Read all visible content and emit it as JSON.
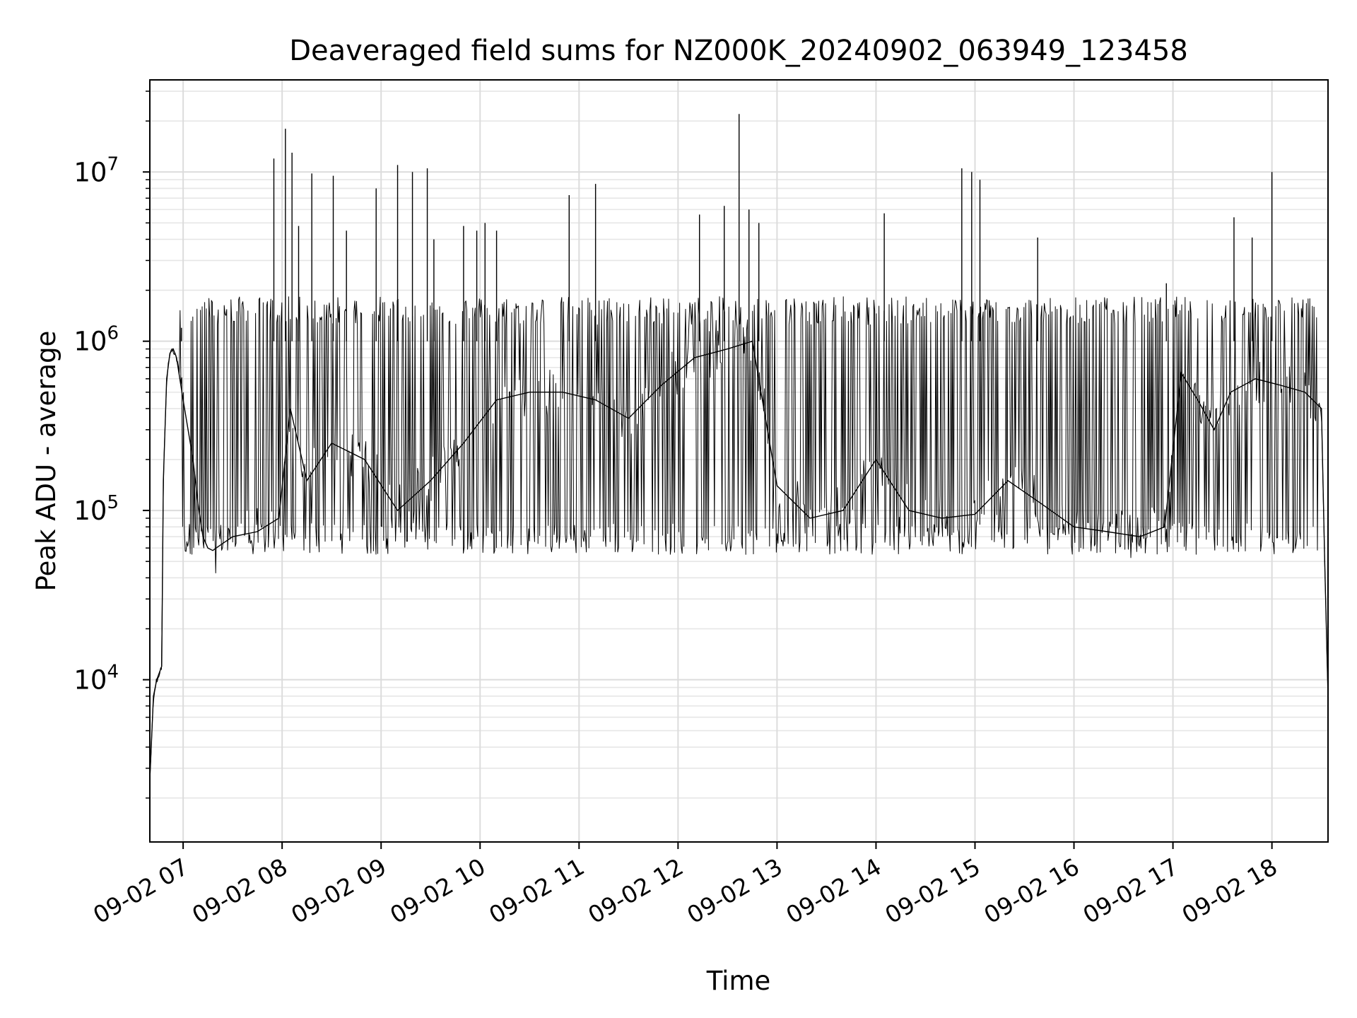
{
  "chart_data": {
    "type": "line",
    "title": "Deaveraged field sums for NZ000K_20240902_063949_123458",
    "xlabel": "Time",
    "ylabel": "Peak ADU - average",
    "yscale": "log",
    "ylim": [
      1100,
      35000000
    ],
    "xlim": [
      "2024-09-02T06:39:49",
      "2024-09-02T18:34:00"
    ],
    "grid": true,
    "legend": "none",
    "line_color": "#000000",
    "x_ticks": [
      {
        "t": "2024-09-02T07:00:00",
        "label": "09-02 07"
      },
      {
        "t": "2024-09-02T08:00:00",
        "label": "09-02 08"
      },
      {
        "t": "2024-09-02T09:00:00",
        "label": "09-02 09"
      },
      {
        "t": "2024-09-02T10:00:00",
        "label": "09-02 10"
      },
      {
        "t": "2024-09-02T11:00:00",
        "label": "09-02 11"
      },
      {
        "t": "2024-09-02T12:00:00",
        "label": "09-02 12"
      },
      {
        "t": "2024-09-02T13:00:00",
        "label": "09-02 13"
      },
      {
        "t": "2024-09-02T14:00:00",
        "label": "09-02 14"
      },
      {
        "t": "2024-09-02T15:00:00",
        "label": "09-02 15"
      },
      {
        "t": "2024-09-02T16:00:00",
        "label": "09-02 16"
      },
      {
        "t": "2024-09-02T17:00:00",
        "label": "09-02 17"
      },
      {
        "t": "2024-09-02T18:00:00",
        "label": "09-02 18"
      }
    ],
    "y_ticks": [
      {
        "value": 10000,
        "base": "10",
        "exp": "4"
      },
      {
        "value": 100000,
        "base": "10",
        "exp": "5"
      },
      {
        "value": 1000000,
        "base": "10",
        "exp": "6"
      },
      {
        "value": 10000000,
        "base": "10",
        "exp": "7"
      }
    ],
    "series": [
      {
        "x": [
          "2024-09-02T06:40",
          "2024-09-02T06:42",
          "2024-09-02T06:44",
          "2024-09-02T06:47",
          "2024-09-02T06:48",
          "2024-09-02T06:50",
          "2024-09-02T06:52",
          "2024-09-02T06:54",
          "2024-09-02T06:56",
          "2024-09-02T06:58",
          "2024-09-02T07:00",
          "2024-09-02T07:03",
          "2024-09-02T07:06",
          "2024-09-02T07:09",
          "2024-09-02T07:12",
          "2024-09-02T07:15",
          "2024-09-02T07:18",
          "2024-09-02T07:20",
          "2024-09-02T07:30",
          "2024-09-02T07:45",
          "2024-09-02T07:58",
          "2024-09-02T08:05",
          "2024-09-02T08:15",
          "2024-09-02T08:30",
          "2024-09-02T08:50",
          "2024-09-02T09:10",
          "2024-09-02T09:30",
          "2024-09-02T09:50",
          "2024-09-02T10:10",
          "2024-09-02T10:30",
          "2024-09-02T10:50",
          "2024-09-02T11:10",
          "2024-09-02T11:30",
          "2024-09-02T11:50",
          "2024-09-02T12:10",
          "2024-09-02T12:30",
          "2024-09-02T12:45",
          "2024-09-02T13:00",
          "2024-09-02T13:20",
          "2024-09-02T13:40",
          "2024-09-02T14:00",
          "2024-09-02T14:20",
          "2024-09-02T14:40",
          "2024-09-02T15:00",
          "2024-09-02T15:20",
          "2024-09-02T15:40",
          "2024-09-02T16:00",
          "2024-09-02T16:20",
          "2024-09-02T16:40",
          "2024-09-02T16:55",
          "2024-09-02T17:05",
          "2024-09-02T17:15",
          "2024-09-02T17:25",
          "2024-09-02T17:35",
          "2024-09-02T17:50",
          "2024-09-02T18:05",
          "2024-09-02T18:20",
          "2024-09-02T18:30",
          "2024-09-02T18:32",
          "2024-09-02T18:34"
        ],
        "y": [
          2800,
          8000,
          10000,
          12000,
          150000,
          600000,
          850000,
          900000,
          800000,
          600000,
          450000,
          300000,
          200000,
          110000,
          70000,
          60000,
          58000,
          60000,
          70000,
          75000,
          90000,
          400000,
          150000,
          250000,
          200000,
          100000,
          150000,
          250000,
          450000,
          500000,
          500000,
          450000,
          350000,
          550000,
          800000,
          900000,
          1000000,
          140000,
          90000,
          100000,
          200000,
          100000,
          90000,
          95000,
          150000,
          110000,
          80000,
          75000,
          70000,
          80000,
          650000,
          450000,
          300000,
          500000,
          600000,
          550000,
          500000,
          400000,
          50000,
          8000
        ]
      }
    ],
    "spikes": {
      "x": [
        "2024-09-02T06:59",
        "2024-09-02T07:55",
        "2024-09-02T08:02",
        "2024-09-02T08:06",
        "2024-09-02T08:10",
        "2024-09-02T08:18",
        "2024-09-02T08:31",
        "2024-09-02T08:39",
        "2024-09-02T08:57",
        "2024-09-02T09:10",
        "2024-09-02T09:19",
        "2024-09-02T09:28",
        "2024-09-02T09:32",
        "2024-09-02T09:50",
        "2024-09-02T09:58",
        "2024-09-02T10:03",
        "2024-09-02T10:10",
        "2024-09-02T10:54",
        "2024-09-02T11:10",
        "2024-09-02T12:13",
        "2024-09-02T12:28",
        "2024-09-02T12:37",
        "2024-09-02T12:43",
        "2024-09-02T12:49",
        "2024-09-02T14:05",
        "2024-09-02T14:52",
        "2024-09-02T14:58",
        "2024-09-02T15:03",
        "2024-09-02T15:38",
        "2024-09-02T16:56",
        "2024-09-02T17:37",
        "2024-09-02T17:48",
        "2024-09-02T18:00"
      ],
      "y": [
        1200000,
        12000000,
        18000000,
        13000000,
        4800000,
        9800000,
        9500000,
        4500000,
        8000000,
        11000000,
        10000000,
        10500000,
        4000000,
        4800000,
        4500000,
        5000000,
        4500000,
        7300000,
        8500000,
        5600000,
        6300000,
        22000000,
        6000000,
        5000000,
        5700000,
        10500000,
        10000000,
        9000000,
        4100000,
        2200000,
        5400000,
        4100000,
        10000000
      ]
    }
  }
}
